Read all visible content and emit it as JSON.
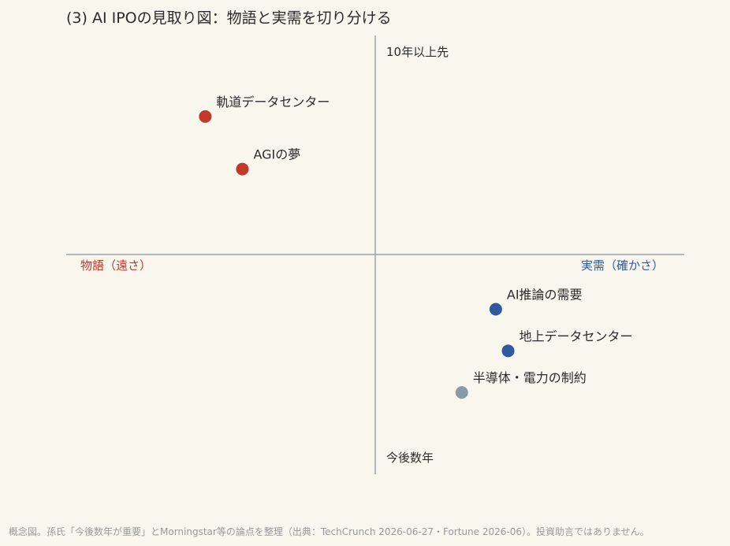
{
  "title": "(3) AI IPOの見取り図：物語と実需を切り分ける",
  "footer": "概念図。孫氏「今後数年が重要」とMorningstar等の論点を整理（出典：TechCrunch 2026-06-27・Fortune 2026-06）。投資助言ではありません。",
  "colors": {
    "background": "#f9f6ee",
    "story": "#c0392b",
    "demand": "#2e5aa0",
    "constraint": "#8a9aa8",
    "axis": "#9aa3ad"
  },
  "chart_data": {
    "type": "scatter",
    "axis_labels": {
      "x_left": "物語（遠さ）",
      "x_right": "実需（確かさ）",
      "y_top": "10年以上先",
      "y_bottom": "今後数年"
    },
    "xlim": [
      -1,
      1
    ],
    "ylim": [
      -1,
      1
    ],
    "grid": false,
    "points": [
      {
        "label": "軌道データセンター",
        "x": -0.55,
        "y": 0.63,
        "group": "story"
      },
      {
        "label": "AGIの夢",
        "x": -0.43,
        "y": 0.39,
        "group": "story"
      },
      {
        "label": "AI推論の需要",
        "x": 0.39,
        "y": -0.25,
        "group": "demand"
      },
      {
        "label": "地上データセンター",
        "x": 0.43,
        "y": -0.44,
        "group": "demand"
      },
      {
        "label": "半導体・電力の制約",
        "x": 0.28,
        "y": -0.63,
        "group": "constraint"
      }
    ]
  }
}
